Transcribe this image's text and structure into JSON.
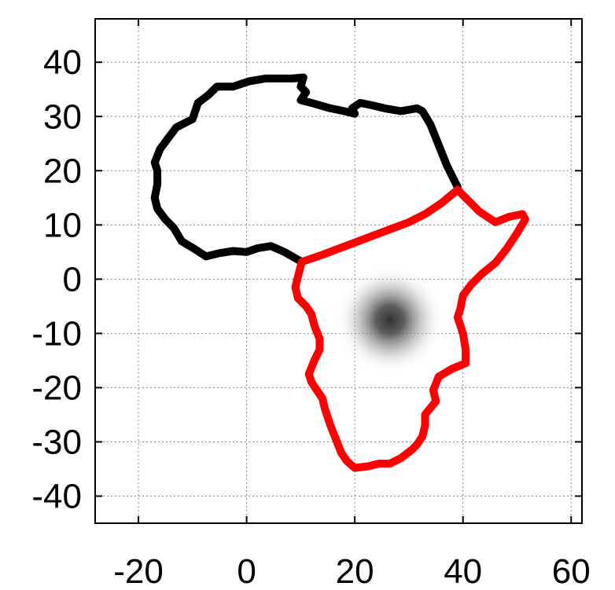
{
  "chart_data": {
    "type": "line",
    "title": "",
    "xlabel": "",
    "ylabel": "",
    "xlim": [
      -28,
      62
    ],
    "ylim": [
      -45,
      48
    ],
    "grid": true,
    "xticks": [
      -20,
      0,
      20,
      40,
      60
    ],
    "yticks": [
      40,
      30,
      20,
      10,
      0,
      -10,
      -20,
      -30,
      -40
    ],
    "xtick_labels": [
      "-20",
      "0",
      "20",
      "40",
      "60"
    ],
    "ytick_labels": [
      "40",
      "30",
      "20",
      "10",
      "0",
      "-10",
      "-20",
      "-30",
      "-40"
    ],
    "heatmap_blob": {
      "center": [
        26.5,
        -7.5
      ],
      "spread": 6.5
    },
    "series": [
      {
        "color": "#000000",
        "points": [
          [
            10.2,
            3.2
          ],
          [
            7.0,
            5.0
          ],
          [
            4.5,
            6.1
          ],
          [
            2.0,
            5.7
          ],
          [
            0.0,
            5.0
          ],
          [
            -2.5,
            5.2
          ],
          [
            -5.0,
            4.8
          ],
          [
            -7.5,
            4.2
          ],
          [
            -9.5,
            5.5
          ],
          [
            -12.0,
            7.0
          ],
          [
            -13.5,
            9.5
          ],
          [
            -15.0,
            11.0
          ],
          [
            -16.5,
            13.0
          ],
          [
            -17.0,
            15.0
          ],
          [
            -16.5,
            17.5
          ],
          [
            -16.5,
            20.0
          ],
          [
            -17.0,
            21.5
          ],
          [
            -16.0,
            24.0
          ],
          [
            -14.5,
            26.0
          ],
          [
            -13.0,
            28.0
          ],
          [
            -10.0,
            29.5
          ],
          [
            -9.0,
            32.5
          ],
          [
            -7.0,
            34.0
          ],
          [
            -5.5,
            35.5
          ],
          [
            -2.5,
            35.5
          ],
          [
            0.5,
            36.5
          ],
          [
            3.5,
            37.0
          ],
          [
            6.5,
            37.0
          ],
          [
            8.5,
            37.0
          ],
          [
            10.5,
            37.2
          ],
          [
            10.0,
            35.5
          ],
          [
            11.0,
            34.5
          ],
          [
            10.0,
            33.0
          ],
          [
            12.0,
            32.5
          ],
          [
            15.5,
            31.5
          ],
          [
            18.0,
            31.0
          ],
          [
            20.0,
            30.5
          ],
          [
            19.5,
            31.5
          ],
          [
            21.0,
            32.5
          ],
          [
            23.5,
            32.0
          ],
          [
            25.5,
            31.5
          ],
          [
            28.5,
            31.0
          ],
          [
            31.5,
            31.5
          ],
          [
            32.5,
            31.0
          ],
          [
            34.0,
            28.5
          ],
          [
            35.0,
            26.0
          ],
          [
            36.0,
            23.5
          ],
          [
            37.0,
            21.0
          ],
          [
            38.0,
            19.0
          ],
          [
            39.0,
            17.0
          ]
        ]
      },
      {
        "color": "#ff0000",
        "points": [
          [
            10.2,
            3.2
          ],
          [
            14.0,
            4.5
          ],
          [
            18.0,
            6.0
          ],
          [
            22.0,
            7.5
          ],
          [
            26.0,
            9.0
          ],
          [
            30.0,
            10.5
          ],
          [
            33.0,
            12.0
          ],
          [
            36.0,
            14.0
          ],
          [
            39.0,
            16.5
          ],
          [
            41.5,
            14.0
          ],
          [
            43.0,
            12.5
          ],
          [
            44.5,
            11.5
          ],
          [
            46.0,
            10.5
          ],
          [
            48.5,
            11.5
          ],
          [
            51.0,
            12.0
          ],
          [
            51.5,
            11.0
          ],
          [
            50.0,
            8.5
          ],
          [
            48.0,
            5.5
          ],
          [
            46.0,
            3.0
          ],
          [
            43.5,
            1.0
          ],
          [
            41.5,
            -1.0
          ],
          [
            40.0,
            -3.0
          ],
          [
            39.5,
            -5.5
          ],
          [
            39.0,
            -7.0
          ],
          [
            40.0,
            -10.0
          ],
          [
            40.5,
            -13.0
          ],
          [
            40.5,
            -15.5
          ],
          [
            38.0,
            -16.5
          ],
          [
            35.5,
            -18.0
          ],
          [
            34.5,
            -20.5
          ],
          [
            35.0,
            -22.5
          ],
          [
            33.0,
            -25.0
          ],
          [
            33.0,
            -27.0
          ],
          [
            32.5,
            -29.0
          ],
          [
            31.5,
            -30.5
          ],
          [
            30.5,
            -31.5
          ],
          [
            28.5,
            -33.0
          ],
          [
            26.5,
            -34.0
          ],
          [
            24.5,
            -34.0
          ],
          [
            22.5,
            -34.5
          ],
          [
            20.0,
            -34.8
          ],
          [
            18.5,
            -33.5
          ],
          [
            17.5,
            -32.0
          ],
          [
            16.5,
            -29.5
          ],
          [
            15.5,
            -27.0
          ],
          [
            14.5,
            -24.0
          ],
          [
            14.0,
            -22.0
          ],
          [
            12.0,
            -19.0
          ],
          [
            11.5,
            -17.5
          ],
          [
            12.5,
            -15.0
          ],
          [
            13.5,
            -13.0
          ],
          [
            13.5,
            -11.0
          ],
          [
            12.5,
            -8.5
          ],
          [
            12.0,
            -6.5
          ],
          [
            11.0,
            -5.0
          ],
          [
            9.5,
            -3.5
          ],
          [
            9.0,
            -1.5
          ],
          [
            9.5,
            0.5
          ],
          [
            10.2,
            3.2
          ]
        ]
      }
    ]
  }
}
